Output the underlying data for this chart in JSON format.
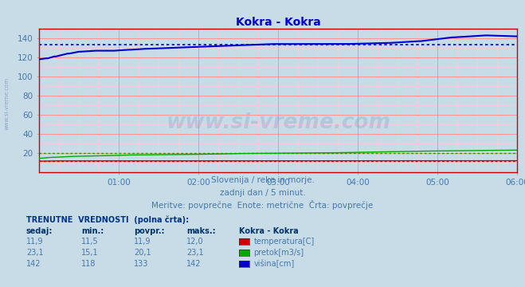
{
  "title": "Kokra - Kokra",
  "title_color": "#0000cc",
  "bg_color": "#c8dce8",
  "plot_bg_color": "#c8dce8",
  "grid_color_major": "#ff8888",
  "grid_color_minor": "#ffcccc",
  "xlim": [
    0,
    288
  ],
  "ylim": [
    0,
    150
  ],
  "yticks": [
    20,
    40,
    60,
    80,
    100,
    120,
    140
  ],
  "xtick_labels": [
    "01:00",
    "02:00",
    "03:00",
    "04:00",
    "05:00",
    "06:00"
  ],
  "xtick_positions": [
    48,
    96,
    144,
    192,
    240,
    288
  ],
  "avg_temp": 11.9,
  "avg_pretok": 20.1,
  "avg_visina": 133,
  "temp_color": "#cc0000",
  "pretok_color": "#00aa00",
  "visina_color": "#0000cc",
  "subtitle1": "Slovenija / reke in morje.",
  "subtitle2": "zadnji dan / 5 minut.",
  "subtitle3": "Meritve: povprečne  Enote: metrične  Črta: povprečje",
  "subtitle_color": "#4477aa",
  "watermark": "www.si-vreme.com",
  "left_label": "www.si-vreme.com",
  "table_header": "TRENUTNE  VREDNOSTI  (polna črta):",
  "col_headers": [
    "sedaj:",
    "min.:",
    "povpr.:",
    "maks.:",
    "Kokra - Kokra"
  ],
  "row1": [
    "11,9",
    "11,5",
    "11,9",
    "12,0",
    "temperatura[C]"
  ],
  "row2": [
    "23,1",
    "15,1",
    "20,1",
    "23,1",
    "pretok[m3/s]"
  ],
  "row3": [
    "142",
    "118",
    "133",
    "142",
    "višina[cm]"
  ]
}
